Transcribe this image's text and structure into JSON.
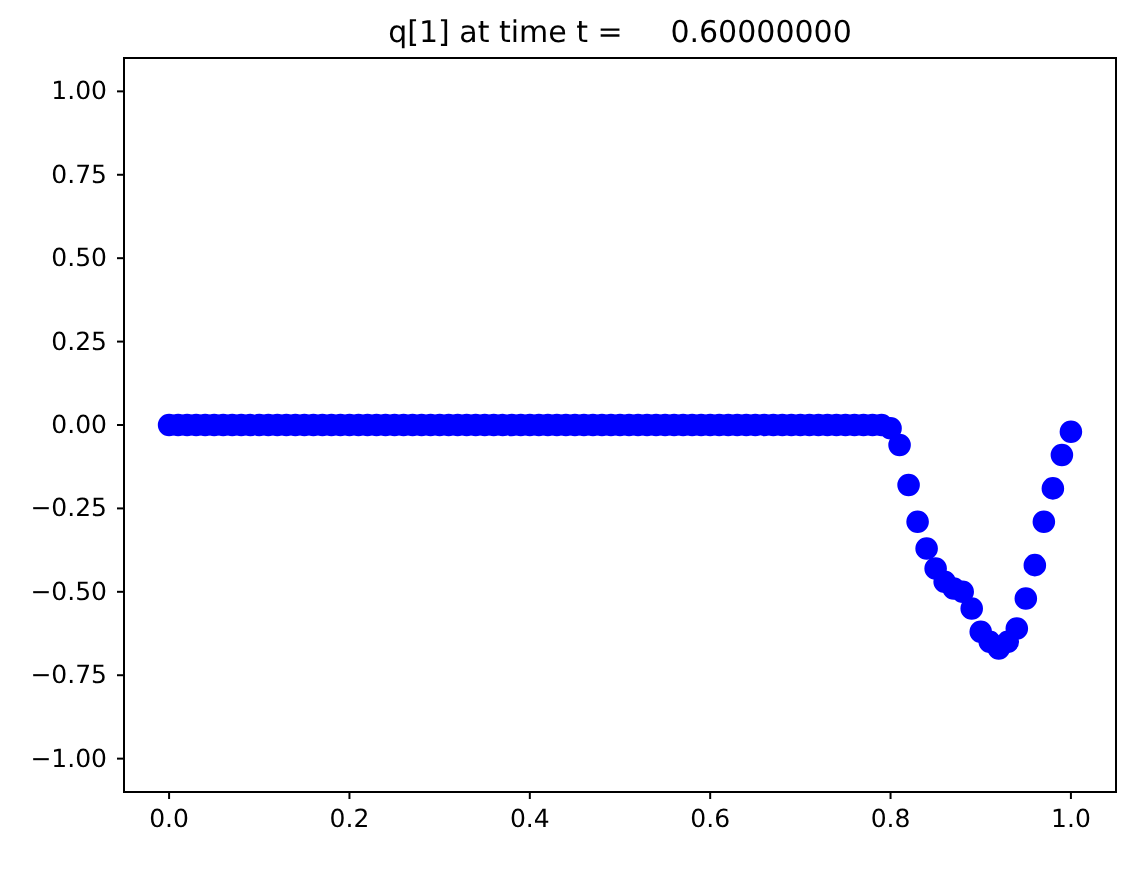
{
  "chart_data": {
    "type": "scatter",
    "title": "q[1] at time t =     0.60000000",
    "x": [
      0,
      0.01,
      0.02,
      0.03,
      0.04,
      0.05,
      0.06,
      0.07,
      0.08,
      0.09,
      0.1,
      0.11,
      0.12,
      0.13,
      0.14,
      0.15,
      0.16,
      0.17,
      0.18,
      0.19,
      0.2,
      0.21,
      0.22,
      0.23,
      0.24,
      0.25,
      0.26,
      0.27,
      0.28,
      0.29,
      0.3,
      0.31,
      0.32,
      0.33,
      0.34,
      0.35,
      0.36,
      0.37,
      0.38,
      0.39,
      0.4,
      0.41,
      0.42,
      0.43,
      0.44,
      0.45,
      0.46,
      0.47,
      0.48,
      0.49,
      0.5,
      0.51,
      0.52,
      0.53,
      0.54,
      0.55,
      0.56,
      0.57,
      0.58,
      0.59,
      0.6,
      0.61,
      0.62,
      0.63,
      0.64,
      0.65,
      0.66,
      0.67,
      0.68,
      0.69,
      0.7,
      0.71,
      0.72,
      0.73,
      0.74,
      0.75,
      0.76,
      0.77,
      0.78,
      0.79,
      0.8,
      0.81,
      0.82,
      0.83,
      0.84,
      0.85,
      0.86,
      0.87,
      0.88,
      0.89,
      0.9,
      0.91,
      0.92,
      0.93,
      0.94,
      0.95,
      0.96,
      0.97,
      0.98,
      0.99,
      1.0
    ],
    "series": [
      {
        "color": "#0000ff",
        "values": [
          0,
          0,
          0,
          0,
          0,
          0,
          0,
          0,
          0,
          0,
          0,
          0,
          0,
          0,
          0,
          0,
          0,
          0,
          0,
          0,
          0,
          0,
          0,
          0,
          0,
          0,
          0,
          0,
          0,
          0,
          0,
          0,
          0,
          0,
          0,
          0,
          0,
          0,
          0,
          0,
          0,
          0,
          0,
          0,
          0,
          0,
          0,
          0,
          0,
          0,
          0,
          0,
          0,
          0,
          0,
          0,
          0,
          0,
          0,
          0,
          0,
          0,
          0,
          0,
          0,
          0,
          0,
          0,
          0,
          0,
          0,
          0,
          0,
          0,
          0,
          0,
          0,
          0,
          0,
          0,
          -0.01,
          -0.06,
          -0.18,
          -0.29,
          -0.37,
          -0.43,
          -0.47,
          -0.49,
          -0.5,
          -0.55,
          -0.62,
          -0.65,
          -0.67,
          -0.65,
          -0.61,
          -0.52,
          -0.42,
          -0.29,
          -0.19,
          -0.09,
          -0.02
        ]
      }
    ],
    "marker": "circle",
    "xlim": [
      -0.05,
      1.05
    ],
    "xticks": [
      {
        "value": 0,
        "label": "0.0"
      },
      {
        "value": 0.2,
        "label": "0.2"
      },
      {
        "value": 0.4,
        "label": "0.4"
      },
      {
        "value": 0.6,
        "label": "0.6"
      },
      {
        "value": 0.8,
        "label": "0.8"
      },
      {
        "value": 1,
        "label": "1.0"
      }
    ],
    "ylim": [
      -1.1,
      1.1
    ],
    "yticks": [
      {
        "value": -1,
        "label": "−1.00"
      },
      {
        "value": -0.75,
        "label": "−0.75"
      },
      {
        "value": -0.5,
        "label": "−0.50"
      },
      {
        "value": -0.25,
        "label": "−0.25"
      },
      {
        "value": 0,
        "label": "0.00"
      },
      {
        "value": 0.25,
        "label": "0.25"
      },
      {
        "value": 0.5,
        "label": "0.50"
      },
      {
        "value": 0.75,
        "label": "0.75"
      },
      {
        "value": 1,
        "label": "1.00"
      }
    ]
  }
}
